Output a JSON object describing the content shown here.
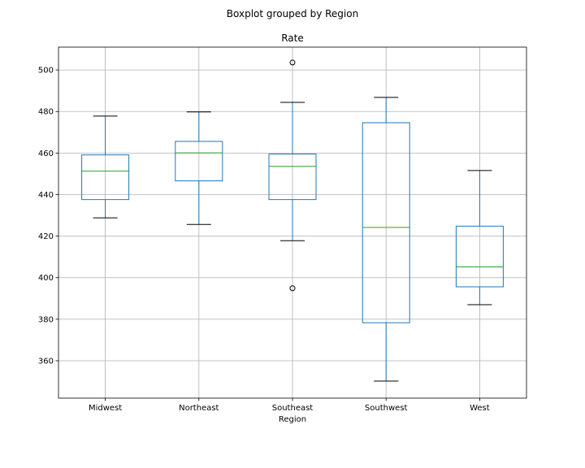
{
  "chart_data": {
    "type": "box",
    "suptitle": "Boxplot grouped by Region",
    "title": "Rate",
    "xlabel": "Region",
    "ylabel": "",
    "ylim": [
      342,
      511
    ],
    "yticks": [
      360,
      380,
      400,
      420,
      440,
      460,
      480,
      500
    ],
    "grid": true,
    "colors": {
      "box": "#1f77b4",
      "median": "#2ca02c",
      "whisker_cap": "#000000",
      "grid": "#b0b0b0"
    },
    "categories": [
      "Midwest",
      "Northeast",
      "Southeast",
      "Southwest",
      "West"
    ],
    "boxes": [
      {
        "name": "Midwest",
        "whislo": 428.8,
        "q1": 437.6,
        "med": 451.3,
        "q3": 459.1,
        "whishi": 477.8,
        "fliers": []
      },
      {
        "name": "Northeast",
        "whislo": 425.6,
        "q1": 446.6,
        "med": 460.1,
        "q3": 465.6,
        "whishi": 479.8,
        "fliers": []
      },
      {
        "name": "Southeast",
        "whislo": 417.8,
        "q1": 437.6,
        "med": 453.6,
        "q3": 459.5,
        "whishi": 484.4,
        "fliers": [
          394.9,
          503.6
        ]
      },
      {
        "name": "Southwest",
        "whislo": 350.2,
        "q1": 378.3,
        "med": 424.2,
        "q3": 474.6,
        "whishi": 486.8,
        "fliers": []
      },
      {
        "name": "West",
        "whislo": 387.0,
        "q1": 395.6,
        "med": 405.2,
        "q3": 424.8,
        "whishi": 451.6,
        "fliers": []
      }
    ]
  }
}
